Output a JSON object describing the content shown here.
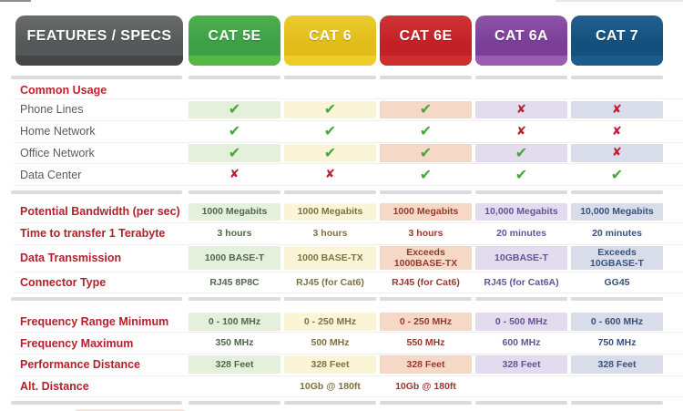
{
  "header": {
    "features_label": "FEATURES / SPECS"
  },
  "features_tab": {
    "body": "#565759",
    "body_light": "#6a6b6d",
    "strip": "#454648"
  },
  "columns": [
    {
      "label": "CAT 5E",
      "body": "#3da047",
      "body_light": "#4fae4e",
      "strip": "#55b744",
      "tint": "#e5f0dc",
      "text": "#50694a"
    },
    {
      "label": "CAT 6",
      "body": "#e2bd1a",
      "body_light": "#ecca2f",
      "strip": "#eecd2a",
      "tint": "#fbf5d8",
      "text": "#7d7340"
    },
    {
      "label": "CAT 6E",
      "body": "#c32127",
      "body_light": "#cf3434",
      "strip": "#cd2e2e",
      "tint": "#f5d9c6",
      "text": "#963a2f"
    },
    {
      "label": "CAT 6A",
      "body": "#7c3f98",
      "body_light": "#8e52a7",
      "strip": "#9a5cb0",
      "tint": "#e2dcee",
      "text": "#645497"
    },
    {
      "label": "CAT 7",
      "body": "#14507e",
      "body_light": "#24608e",
      "strip": "#1c5c8c",
      "tint": "#d8dde9",
      "text": "#38517d"
    }
  ],
  "icons": {
    "check": "✔",
    "x": "✘",
    "check_color": "#46a83c",
    "x_color": "#be1e2d"
  },
  "colors": {
    "page_background": "#ffffff",
    "divider": "#d9dbdc",
    "row_separator": "#efefef",
    "section_heading_red": "#c0232e",
    "spec_label_red": "#b4202b",
    "usage_label_gray": "#5a5b5d"
  },
  "sections": [
    {
      "heading": "Common Usage",
      "cell_type": "icon",
      "rows": [
        {
          "label": "Phone Lines",
          "cells": [
            "check",
            "check",
            "check",
            "x",
            "x"
          ]
        },
        {
          "label": "Home Network",
          "cells": [
            "check",
            "check",
            "check",
            "x",
            "x"
          ]
        },
        {
          "label": "Office Network",
          "cells": [
            "check",
            "check",
            "check",
            "check",
            "x"
          ]
        },
        {
          "label": "Data Center",
          "cells": [
            "x",
            "x",
            "check",
            "check",
            "check"
          ]
        }
      ]
    },
    {
      "heading": "",
      "cell_type": "text",
      "rows": [
        {
          "label": "Potential Bandwidth (per sec)",
          "cells": [
            "1000 Megabits",
            "1000 Megabits",
            "1000 Megabits",
            "10,000 Megabits",
            "10,000 Megabits"
          ]
        },
        {
          "label": "Time to transfer 1 Terabyte",
          "cells": [
            "3 hours",
            "3 hours",
            "3 hours",
            "20 minutes",
            "20 minutes"
          ]
        },
        {
          "label": "Data Transmission",
          "cells": [
            "1000 BASE-T",
            "1000 BASE-TX",
            "Exceeds 1000BASE-TX",
            "10GBASE-T",
            "Exceeds 10GBASE-T"
          ]
        },
        {
          "label": "Connector Type",
          "cells": [
            "RJ45 8P8C",
            "RJ45 (for Cat6)",
            "RJ45 (for Cat6)",
            "RJ45 (for Cat6A)",
            "GG45"
          ]
        }
      ]
    },
    {
      "heading": "",
      "cell_type": "text",
      "rows": [
        {
          "label": "Frequency Range Minimum",
          "cells": [
            "0 - 100 MHz",
            "0 - 250 MHz",
            "0 - 250 MHz",
            "0 - 500 MHz",
            "0 - 600 MHz"
          ]
        },
        {
          "label": "Frequency Maximum",
          "cells": [
            "350 MHz",
            "500 MHz",
            "550 MHz",
            "600 MHz",
            "750 MHz"
          ]
        },
        {
          "label": "Performance Distance",
          "cells": [
            "328 Feet",
            "328 Feet",
            "328 Feet",
            "328 Feet",
            "328 Feet"
          ]
        },
        {
          "label": "Alt. Distance",
          "cells": [
            "",
            "10Gb @ 180ft",
            "10Gb @ 180ft",
            "",
            ""
          ]
        }
      ]
    }
  ],
  "chart_data": {
    "type": "table",
    "title": "FEATURES / SPECS",
    "columns": [
      "CAT 5E",
      "CAT 6",
      "CAT 6E",
      "CAT 6A",
      "CAT 7"
    ],
    "rows": [
      {
        "label": "Phone Lines",
        "values": [
          "yes",
          "yes",
          "yes",
          "no",
          "no"
        ]
      },
      {
        "label": "Home Network",
        "values": [
          "yes",
          "yes",
          "yes",
          "no",
          "no"
        ]
      },
      {
        "label": "Office Network",
        "values": [
          "yes",
          "yes",
          "yes",
          "yes",
          "no"
        ]
      },
      {
        "label": "Data Center",
        "values": [
          "no",
          "no",
          "yes",
          "yes",
          "yes"
        ]
      },
      {
        "label": "Potential Bandwidth (per sec)",
        "values": [
          "1000 Megabits",
          "1000 Megabits",
          "1000 Megabits",
          "10,000 Megabits",
          "10,000 Megabits"
        ]
      },
      {
        "label": "Time to transfer 1 Terabyte",
        "values": [
          "3 hours",
          "3 hours",
          "3 hours",
          "20 minutes",
          "20 minutes"
        ]
      },
      {
        "label": "Data Transmission",
        "values": [
          "1000 BASE-T",
          "1000 BASE-TX",
          "Exceeds 1000BASE-TX",
          "10GBASE-T",
          "Exceeds 10GBASE-T"
        ]
      },
      {
        "label": "Connector Type",
        "values": [
          "RJ45 8P8C",
          "RJ45 (for Cat6)",
          "RJ45 (for Cat6)",
          "RJ45 (for Cat6A)",
          "GG45"
        ]
      },
      {
        "label": "Frequency Range Minimum",
        "values": [
          "0 - 100 MHz",
          "0 - 250 MHz",
          "0 - 250 MHz",
          "0 - 500 MHz",
          "0 - 600 MHz"
        ]
      },
      {
        "label": "Frequency Maximum",
        "values": [
          "350 MHz",
          "500 MHz",
          "550 MHz",
          "600 MHz",
          "750 MHz"
        ]
      },
      {
        "label": "Performance Distance",
        "values": [
          "328 Feet",
          "328 Feet",
          "328 Feet",
          "328 Feet",
          "328 Feet"
        ]
      },
      {
        "label": "Alt. Distance",
        "values": [
          "",
          "10Gb @ 180ft",
          "10Gb @ 180ft",
          "",
          ""
        ]
      }
    ]
  }
}
